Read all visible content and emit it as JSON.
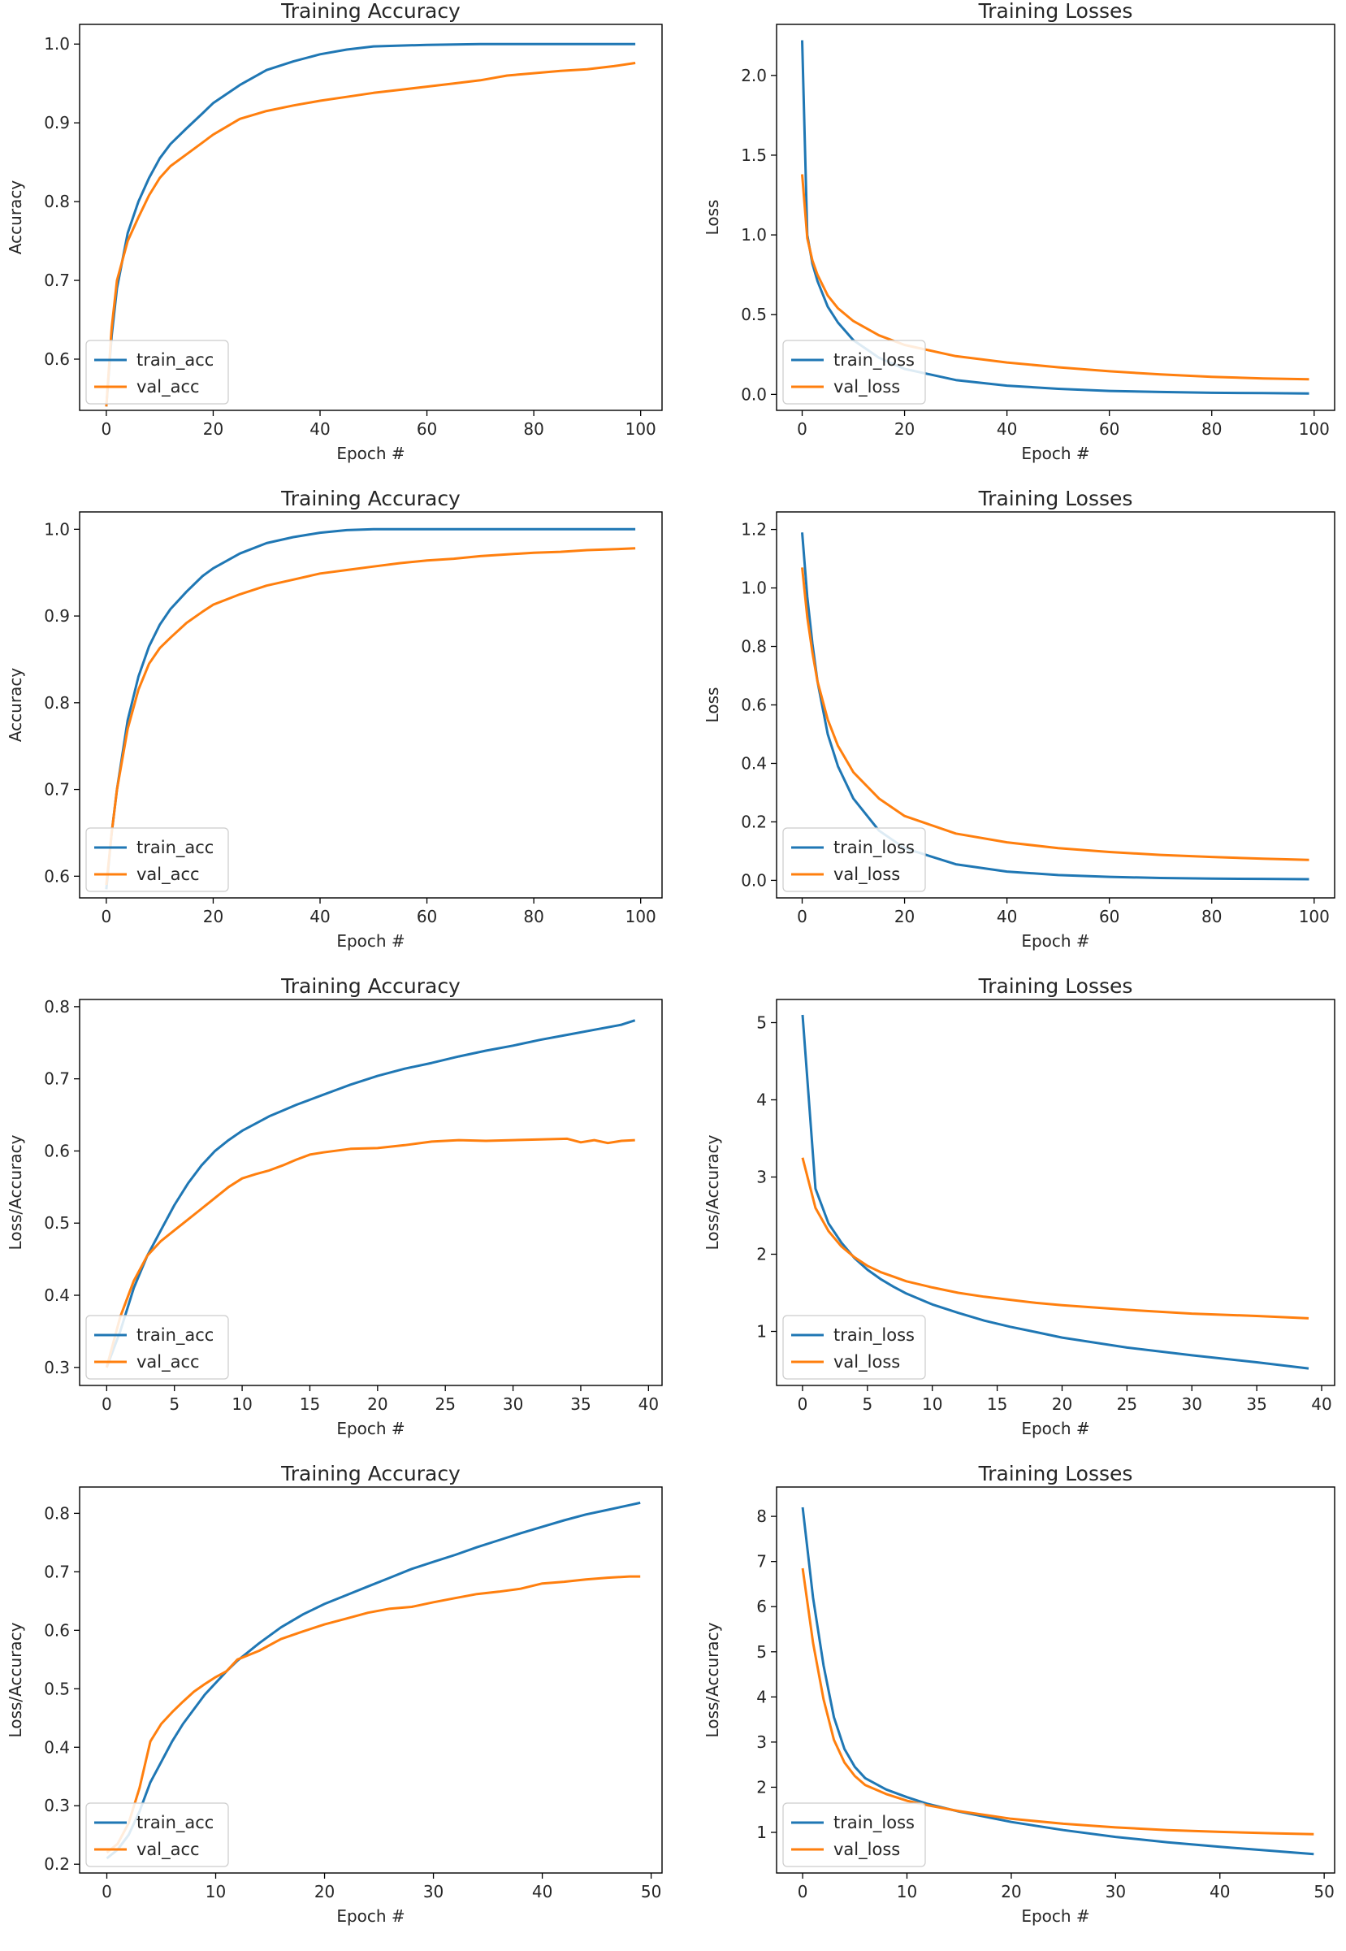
{
  "chart_data": [
    {
      "type": "line",
      "title": "Training Accuracy",
      "xlabel": "Epoch #",
      "ylabel": "Accuracy",
      "xlim": [
        -5,
        104
      ],
      "ylim": [
        0.535,
        1.025
      ],
      "xticks": [
        0,
        20,
        40,
        60,
        80,
        100
      ],
      "yticks": [
        0.6,
        0.7,
        0.8,
        0.9,
        1.0
      ],
      "ytick_labels": [
        "0.6",
        "0.7",
        "0.8",
        "0.9",
        "1.0"
      ],
      "legend_location": "lower left",
      "series": [
        {
          "name": "train_acc",
          "color": "#1f77b4",
          "x": [
            0,
            1,
            2,
            4,
            6,
            8,
            10,
            12,
            15,
            18,
            20,
            25,
            30,
            35,
            40,
            45,
            50,
            60,
            70,
            80,
            90,
            99
          ],
          "y": [
            0.54,
            0.63,
            0.69,
            0.76,
            0.8,
            0.83,
            0.855,
            0.873,
            0.893,
            0.912,
            0.925,
            0.948,
            0.967,
            0.978,
            0.987,
            0.993,
            0.997,
            0.999,
            1.0,
            1.0,
            1.0,
            1.0
          ]
        },
        {
          "name": "val_acc",
          "color": "#ff7f0e",
          "x": [
            0,
            1,
            2,
            4,
            6,
            8,
            10,
            12,
            15,
            18,
            20,
            25,
            30,
            35,
            40,
            45,
            50,
            55,
            60,
            65,
            70,
            75,
            80,
            85,
            90,
            95,
            99
          ],
          "y": [
            0.54,
            0.64,
            0.7,
            0.75,
            0.78,
            0.808,
            0.83,
            0.845,
            0.86,
            0.875,
            0.885,
            0.905,
            0.915,
            0.922,
            0.928,
            0.933,
            0.938,
            0.942,
            0.946,
            0.95,
            0.954,
            0.96,
            0.963,
            0.966,
            0.968,
            0.972,
            0.976
          ]
        }
      ]
    },
    {
      "type": "line",
      "title": "Training Losses",
      "xlabel": "Epoch #",
      "ylabel": "Loss",
      "xlim": [
        -5,
        104
      ],
      "ylim": [
        -0.1,
        2.32
      ],
      "xticks": [
        0,
        20,
        40,
        60,
        80,
        100
      ],
      "yticks": [
        0.0,
        0.5,
        1.0,
        1.5,
        2.0
      ],
      "ytick_labels": [
        "0.0",
        "0.5",
        "1.0",
        "1.5",
        "2.0"
      ],
      "legend_location": "lower left",
      "series": [
        {
          "name": "train_loss",
          "color": "#1f77b4",
          "x": [
            0,
            1,
            2,
            3,
            5,
            7,
            10,
            15,
            20,
            30,
            40,
            50,
            60,
            70,
            80,
            90,
            99
          ],
          "y": [
            2.22,
            1.0,
            0.82,
            0.71,
            0.55,
            0.45,
            0.34,
            0.23,
            0.16,
            0.09,
            0.055,
            0.035,
            0.022,
            0.015,
            0.01,
            0.008,
            0.006
          ]
        },
        {
          "name": "val_loss",
          "color": "#ff7f0e",
          "x": [
            0,
            1,
            2,
            3,
            5,
            7,
            10,
            15,
            20,
            30,
            40,
            50,
            60,
            70,
            80,
            90,
            99
          ],
          "y": [
            1.38,
            0.98,
            0.84,
            0.75,
            0.62,
            0.54,
            0.46,
            0.37,
            0.31,
            0.24,
            0.2,
            0.17,
            0.145,
            0.125,
            0.11,
            0.1,
            0.095
          ]
        }
      ]
    },
    {
      "type": "line",
      "title": "Training Accuracy",
      "xlabel": "Epoch #",
      "ylabel": "Accuracy",
      "xlim": [
        -5,
        104
      ],
      "ylim": [
        0.575,
        1.02
      ],
      "xticks": [
        0,
        20,
        40,
        60,
        80,
        100
      ],
      "yticks": [
        0.6,
        0.7,
        0.8,
        0.9,
        1.0
      ],
      "ytick_labels": [
        "0.6",
        "0.7",
        "0.8",
        "0.9",
        "1.0"
      ],
      "legend_location": "lower left",
      "series": [
        {
          "name": "train_acc",
          "color": "#1f77b4",
          "x": [
            0,
            1,
            2,
            4,
            6,
            8,
            10,
            12,
            15,
            18,
            20,
            25,
            30,
            35,
            40,
            45,
            50,
            60,
            70,
            80,
            90,
            99
          ],
          "y": [
            0.585,
            0.65,
            0.7,
            0.78,
            0.83,
            0.865,
            0.89,
            0.908,
            0.928,
            0.946,
            0.955,
            0.972,
            0.984,
            0.991,
            0.996,
            0.999,
            1.0,
            1.0,
            1.0,
            1.0,
            1.0,
            1.0
          ]
        },
        {
          "name": "val_acc",
          "color": "#ff7f0e",
          "x": [
            0,
            1,
            2,
            4,
            6,
            8,
            10,
            12,
            15,
            18,
            20,
            25,
            30,
            35,
            40,
            45,
            50,
            55,
            60,
            65,
            70,
            75,
            80,
            85,
            90,
            95,
            99
          ],
          "y": [
            0.59,
            0.65,
            0.7,
            0.77,
            0.815,
            0.845,
            0.863,
            0.875,
            0.892,
            0.905,
            0.913,
            0.925,
            0.935,
            0.942,
            0.949,
            0.953,
            0.957,
            0.961,
            0.964,
            0.966,
            0.969,
            0.971,
            0.973,
            0.974,
            0.976,
            0.977,
            0.978
          ]
        }
      ]
    },
    {
      "type": "line",
      "title": "Training Losses",
      "xlabel": "Epoch #",
      "ylabel": "Loss",
      "xlim": [
        -5,
        104
      ],
      "ylim": [
        -0.06,
        1.26
      ],
      "xticks": [
        0,
        20,
        40,
        60,
        80,
        100
      ],
      "yticks": [
        0.0,
        0.2,
        0.4,
        0.6,
        0.8,
        1.0,
        1.2
      ],
      "ytick_labels": [
        "0.0",
        "0.2",
        "0.4",
        "0.6",
        "0.8",
        "1.0",
        "1.2"
      ],
      "legend_location": "lower left",
      "series": [
        {
          "name": "train_loss",
          "color": "#1f77b4",
          "x": [
            0,
            1,
            2,
            3,
            5,
            7,
            10,
            15,
            20,
            30,
            40,
            50,
            60,
            70,
            80,
            90,
            99
          ],
          "y": [
            1.19,
            0.97,
            0.81,
            0.68,
            0.5,
            0.39,
            0.28,
            0.17,
            0.11,
            0.055,
            0.03,
            0.018,
            0.012,
            0.008,
            0.006,
            0.005,
            0.004
          ]
        },
        {
          "name": "val_loss",
          "color": "#ff7f0e",
          "x": [
            0,
            1,
            2,
            3,
            5,
            7,
            10,
            15,
            20,
            30,
            40,
            50,
            60,
            70,
            80,
            90,
            99
          ],
          "y": [
            1.07,
            0.9,
            0.78,
            0.68,
            0.55,
            0.46,
            0.37,
            0.28,
            0.22,
            0.16,
            0.13,
            0.11,
            0.097,
            0.087,
            0.08,
            0.074,
            0.07
          ]
        }
      ]
    },
    {
      "type": "line",
      "title": "Training Accuracy",
      "xlabel": "Epoch #",
      "ylabel": "Loss/Accuracy",
      "xlim": [
        -2,
        41
      ],
      "ylim": [
        0.275,
        0.81
      ],
      "xticks": [
        0,
        5,
        10,
        15,
        20,
        25,
        30,
        35,
        40
      ],
      "yticks": [
        0.3,
        0.4,
        0.5,
        0.6,
        0.7,
        0.8
      ],
      "ytick_labels": [
        "0.3",
        "0.4",
        "0.5",
        "0.6",
        "0.7",
        "0.8"
      ],
      "legend_location": "lower left",
      "series": [
        {
          "name": "train_acc",
          "color": "#1f77b4",
          "x": [
            0,
            1,
            2,
            3,
            4,
            5,
            6,
            7,
            8,
            9,
            10,
            11,
            12,
            13,
            14,
            15,
            16,
            17,
            18,
            19,
            20,
            22,
            24,
            26,
            28,
            30,
            32,
            34,
            36,
            38,
            39
          ],
          "y": [
            0.3,
            0.35,
            0.41,
            0.455,
            0.49,
            0.525,
            0.555,
            0.58,
            0.6,
            0.615,
            0.628,
            0.638,
            0.648,
            0.656,
            0.664,
            0.671,
            0.678,
            0.685,
            0.692,
            0.698,
            0.704,
            0.714,
            0.722,
            0.731,
            0.739,
            0.746,
            0.754,
            0.761,
            0.768,
            0.775,
            0.781
          ]
        },
        {
          "name": "val_acc",
          "color": "#ff7f0e",
          "x": [
            0,
            1,
            2,
            3,
            4,
            5,
            6,
            7,
            8,
            9,
            10,
            11,
            12,
            13,
            14,
            15,
            16,
            18,
            20,
            22,
            24,
            26,
            28,
            30,
            32,
            34,
            35,
            36,
            37,
            38,
            39
          ],
          "y": [
            0.3,
            0.37,
            0.42,
            0.455,
            0.475,
            0.49,
            0.505,
            0.52,
            0.535,
            0.55,
            0.562,
            0.568,
            0.573,
            0.58,
            0.588,
            0.595,
            0.598,
            0.603,
            0.604,
            0.608,
            0.613,
            0.615,
            0.614,
            0.615,
            0.616,
            0.617,
            0.612,
            0.615,
            0.611,
            0.614,
            0.615
          ]
        }
      ]
    },
    {
      "type": "line",
      "title": "Training Losses",
      "xlabel": "Epoch #",
      "ylabel": "Loss/Accuracy",
      "xlim": [
        -2,
        41
      ],
      "ylim": [
        0.3,
        5.3
      ],
      "xticks": [
        0,
        5,
        10,
        15,
        20,
        25,
        30,
        35,
        40
      ],
      "yticks": [
        1,
        2,
        3,
        4,
        5
      ],
      "ytick_labels": [
        "1",
        "2",
        "3",
        "4",
        "5"
      ],
      "legend_location": "lower left",
      "series": [
        {
          "name": "train_loss",
          "color": "#1f77b4",
          "x": [
            0,
            1,
            2,
            3,
            4,
            5,
            6,
            7,
            8,
            10,
            12,
            14,
            16,
            18,
            20,
            25,
            30,
            35,
            39
          ],
          "y": [
            5.1,
            2.85,
            2.4,
            2.15,
            1.95,
            1.8,
            1.68,
            1.58,
            1.49,
            1.35,
            1.24,
            1.14,
            1.06,
            0.99,
            0.92,
            0.79,
            0.69,
            0.6,
            0.52
          ]
        },
        {
          "name": "val_loss",
          "color": "#ff7f0e",
          "x": [
            0,
            1,
            2,
            3,
            4,
            5,
            6,
            7,
            8,
            10,
            12,
            14,
            16,
            18,
            20,
            25,
            30,
            35,
            39
          ],
          "y": [
            3.25,
            2.6,
            2.3,
            2.1,
            1.96,
            1.85,
            1.77,
            1.71,
            1.65,
            1.57,
            1.5,
            1.45,
            1.41,
            1.37,
            1.34,
            1.28,
            1.23,
            1.2,
            1.17
          ]
        }
      ]
    },
    {
      "type": "line",
      "title": "Training Accuracy",
      "xlabel": "Epoch #",
      "ylabel": "Loss/Accuracy",
      "xlim": [
        -2.5,
        51
      ],
      "ylim": [
        0.185,
        0.845
      ],
      "xticks": [
        0,
        10,
        20,
        30,
        40,
        50
      ],
      "yticks": [
        0.2,
        0.3,
        0.4,
        0.5,
        0.6,
        0.7,
        0.8
      ],
      "ytick_labels": [
        "0.2",
        "0.3",
        "0.4",
        "0.5",
        "0.6",
        "0.7",
        "0.8"
      ],
      "legend_location": "lower left",
      "series": [
        {
          "name": "train_acc",
          "color": "#1f77b4",
          "x": [
            0,
            1,
            2,
            3,
            4,
            5,
            6,
            7,
            8,
            9,
            10,
            11,
            12,
            14,
            16,
            18,
            20,
            22,
            24,
            26,
            28,
            30,
            32,
            34,
            36,
            38,
            40,
            42,
            44,
            46,
            48,
            49
          ],
          "y": [
            0.21,
            0.225,
            0.25,
            0.29,
            0.34,
            0.375,
            0.41,
            0.44,
            0.465,
            0.49,
            0.51,
            0.53,
            0.548,
            0.578,
            0.605,
            0.627,
            0.645,
            0.66,
            0.675,
            0.69,
            0.705,
            0.717,
            0.729,
            0.742,
            0.754,
            0.766,
            0.777,
            0.788,
            0.798,
            0.806,
            0.814,
            0.818
          ]
        },
        {
          "name": "val_acc",
          "color": "#ff7f0e",
          "x": [
            0,
            1,
            2,
            3,
            4,
            5,
            6,
            7,
            8,
            9,
            10,
            11,
            12,
            14,
            16,
            18,
            20,
            22,
            24,
            26,
            28,
            30,
            32,
            34,
            36,
            38,
            40,
            42,
            44,
            46,
            48,
            49
          ],
          "y": [
            0.22,
            0.235,
            0.27,
            0.33,
            0.41,
            0.44,
            0.46,
            0.478,
            0.495,
            0.508,
            0.52,
            0.53,
            0.55,
            0.565,
            0.585,
            0.598,
            0.61,
            0.62,
            0.63,
            0.637,
            0.64,
            0.648,
            0.655,
            0.662,
            0.666,
            0.671,
            0.68,
            0.683,
            0.687,
            0.69,
            0.692,
            0.692
          ]
        }
      ]
    },
    {
      "type": "line",
      "title": "Training Losses",
      "xlabel": "Epoch #",
      "ylabel": "Loss/Accuracy",
      "xlim": [
        -2.5,
        51
      ],
      "ylim": [
        0.1,
        8.65
      ],
      "xticks": [
        0,
        10,
        20,
        30,
        40,
        50
      ],
      "yticks": [
        1,
        2,
        3,
        4,
        5,
        6,
        7,
        8
      ],
      "ytick_labels": [
        "1",
        "2",
        "3",
        "4",
        "5",
        "6",
        "7",
        "8"
      ],
      "legend_location": "lower left",
      "series": [
        {
          "name": "train_loss",
          "color": "#1f77b4",
          "x": [
            0,
            1,
            2,
            3,
            4,
            5,
            6,
            8,
            10,
            12,
            15,
            20,
            25,
            30,
            35,
            40,
            45,
            49
          ],
          "y": [
            8.2,
            6.2,
            4.7,
            3.55,
            2.85,
            2.45,
            2.2,
            1.95,
            1.78,
            1.63,
            1.46,
            1.23,
            1.05,
            0.9,
            0.78,
            0.68,
            0.59,
            0.52
          ]
        },
        {
          "name": "val_loss",
          "color": "#ff7f0e",
          "x": [
            0,
            1,
            2,
            3,
            4,
            5,
            6,
            8,
            10,
            12,
            15,
            20,
            25,
            30,
            35,
            40,
            45,
            49
          ],
          "y": [
            6.85,
            5.2,
            3.95,
            3.05,
            2.55,
            2.25,
            2.05,
            1.85,
            1.7,
            1.6,
            1.47,
            1.3,
            1.19,
            1.11,
            1.05,
            1.01,
            0.98,
            0.96
          ]
        }
      ]
    }
  ]
}
